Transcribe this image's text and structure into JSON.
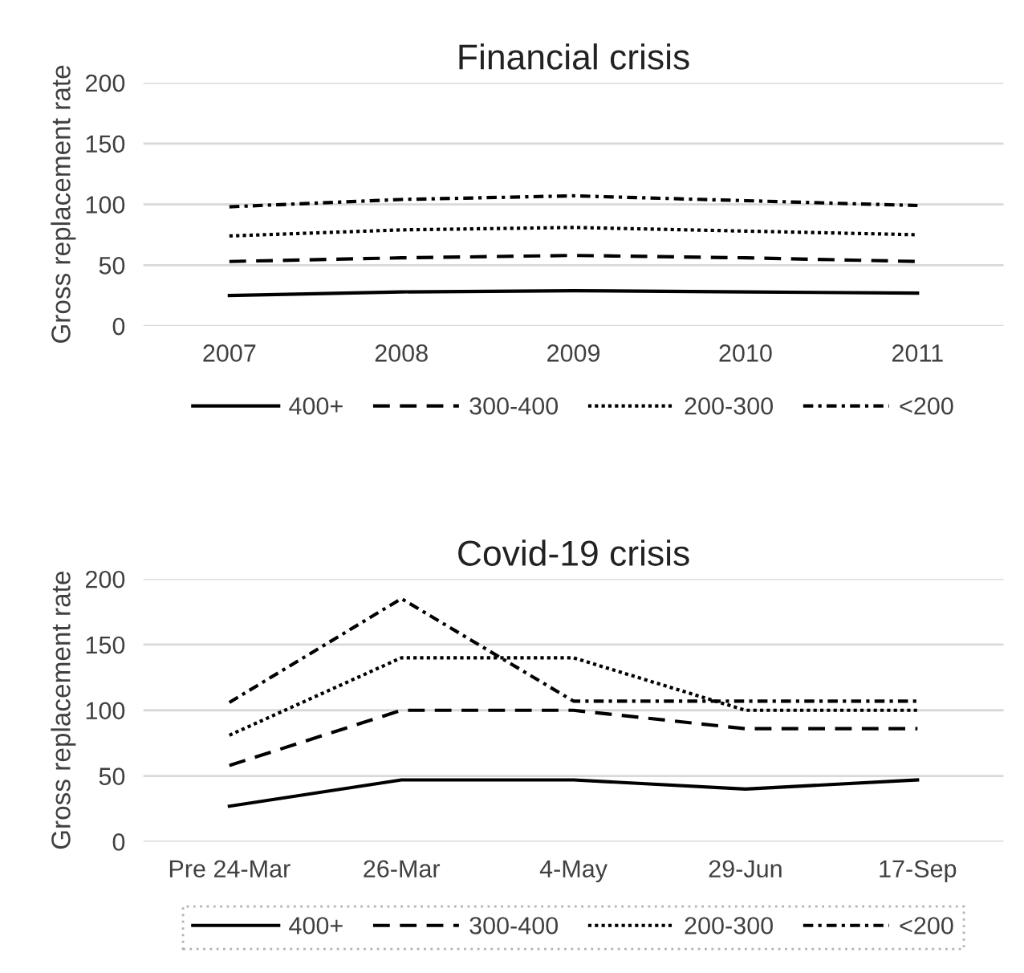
{
  "chart_data": [
    {
      "type": "line",
      "title": "Financial crisis",
      "ylabel": "Gross replacement rate",
      "categories": [
        "2007",
        "2008",
        "2009",
        "2010",
        "2011"
      ],
      "ylim": [
        0,
        200
      ],
      "yticks": [
        0,
        50,
        100,
        150,
        200
      ],
      "grid": "y",
      "legend": "bottom",
      "series": [
        {
          "name": "400+",
          "color": "#000000",
          "line_style": "solid",
          "values": [
            25,
            28,
            29,
            28,
            27
          ]
        },
        {
          "name": "300-400",
          "color": "#000000",
          "line_style": "dashed",
          "values": [
            53,
            56,
            58,
            56,
            53
          ]
        },
        {
          "name": "200-300",
          "color": "#000000",
          "line_style": "dotted",
          "values": [
            74,
            79,
            81,
            78,
            75
          ]
        },
        {
          "name": "<200",
          "color": "#000000",
          "line_style": "dashdot",
          "values": [
            98,
            104,
            107,
            103,
            99
          ]
        }
      ]
    },
    {
      "type": "line",
      "title": "Covid-19 crisis",
      "ylabel": "Gross replacement rate",
      "categories": [
        "Pre 24-Mar",
        "26-Mar",
        "4-May",
        "29-Jun",
        "17-Sep"
      ],
      "ylim": [
        0,
        200
      ],
      "yticks": [
        0,
        50,
        100,
        150,
        200
      ],
      "grid": "y",
      "legend": "bottom",
      "series": [
        {
          "name": "400+",
          "color": "#000000",
          "line_style": "solid",
          "values": [
            27,
            47,
            47,
            40,
            47
          ]
        },
        {
          "name": "300-400",
          "color": "#000000",
          "line_style": "dashed",
          "values": [
            58,
            100,
            100,
            86,
            86
          ]
        },
        {
          "name": "200-300",
          "color": "#000000",
          "line_style": "dotted",
          "values": [
            81,
            140,
            140,
            100,
            100
          ]
        },
        {
          "name": "<200",
          "color": "#000000",
          "line_style": "dashdot",
          "values": [
            106,
            185,
            107,
            107,
            107
          ]
        }
      ]
    }
  ]
}
